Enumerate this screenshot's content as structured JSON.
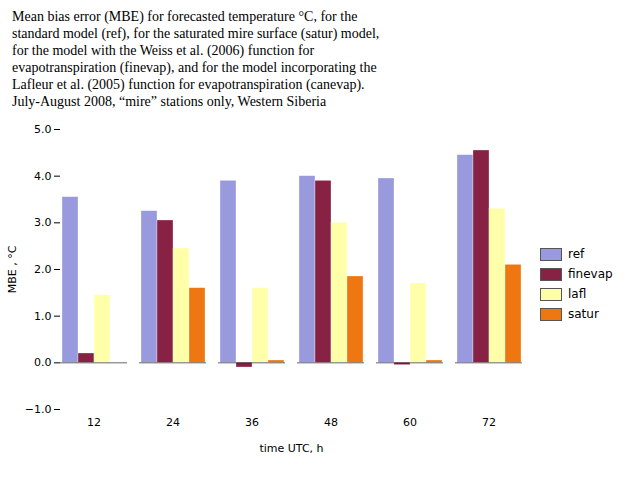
{
  "chart_data": {
    "type": "bar",
    "caption": [
      "Mean bias error (MBE) for forecasted temperature °C, for the",
      "standard model (ref), for the saturated mire surface (satur) model,",
      "for the model with the Weiss et al. (2006) function for",
      "evapotranspiration (finevap), and for the model incorporating the",
      "Lafleur et al. (2005) function for evapotranspiration (canevap).",
      "July-August 2008, “mire” stations only, Western Siberia"
    ],
    "categories": [
      12,
      24,
      36,
      48,
      60,
      72
    ],
    "series": [
      {
        "name": "ref",
        "color": "#9999dd",
        "values": [
          3.55,
          3.25,
          3.9,
          4.0,
          3.95,
          4.45
        ]
      },
      {
        "name": "finevap",
        "color": "#882244",
        "values": [
          0.2,
          3.05,
          -0.1,
          3.9,
          -0.05,
          4.55
        ]
      },
      {
        "name": "lafl",
        "color": "#ffffaa",
        "values": [
          1.45,
          2.45,
          1.6,
          3.0,
          1.7,
          3.3
        ]
      },
      {
        "name": "satur",
        "color": "#ee7711",
        "values": [
          0.0,
          1.6,
          0.05,
          1.85,
          0.05,
          2.1
        ]
      }
    ],
    "xlabel": "time UTC, h",
    "ylabel": "MBE , °C",
    "ylim": [
      -1,
      5
    ],
    "yticks": [
      -1,
      0,
      1,
      2,
      3,
      4,
      5
    ],
    "grid": false,
    "legend": "right"
  }
}
